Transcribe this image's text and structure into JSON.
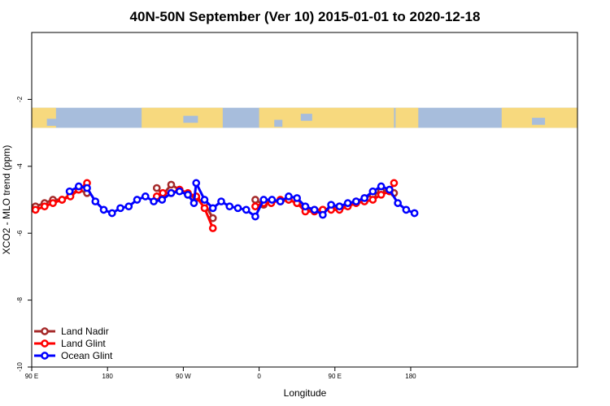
{
  "chart_data": {
    "type": "line",
    "title": "40N-50N September (Ver 10)   2015-01-01 to 2020-12-18",
    "xlabel": "Longitude",
    "ylabel": "XCO2 - MLO trend (ppm)",
    "xlim": [
      0,
      720
    ],
    "ylim": [
      -10,
      0
    ],
    "grid": false,
    "legend_position": "bottom-left",
    "x_ticks": [
      {
        "value": 0,
        "label": "90 E"
      },
      {
        "value": 100,
        "label": "180"
      },
      {
        "value": 200,
        "label": "90 W"
      },
      {
        "value": 300,
        "label": "0"
      },
      {
        "value": 400,
        "label": "90 E"
      },
      {
        "value": 500,
        "label": "180"
      }
    ],
    "y_ticks": [
      {
        "value": -2,
        "label": "-2"
      },
      {
        "value": -4,
        "label": "-4"
      },
      {
        "value": -6,
        "label": "-6"
      },
      {
        "value": -8,
        "label": "-8"
      },
      {
        "value": -10,
        "label": "-10"
      }
    ],
    "map_band": {
      "y_top": -2.25,
      "y_bottom": -2.85,
      "ocean_color": "#a7bddc",
      "land_color": "#f7d97e"
    },
    "series": [
      {
        "name": "Land Nadir",
        "color": "#a52a2a",
        "segments": [
          [
            [
              5,
              -5.2
            ],
            [
              17,
              -5.1
            ],
            [
              28,
              -5.0
            ],
            [
              40,
              -5.0
            ],
            [
              51,
              -4.85
            ],
            [
              62,
              -4.7
            ],
            [
              73,
              -4.8
            ]
          ],
          [
            [
              165,
              -4.65
            ],
            [
              173,
              -4.85
            ],
            [
              184,
              -4.55
            ],
            [
              195,
              -4.7
            ],
            [
              206,
              -4.85
            ],
            [
              217,
              -4.95
            ],
            [
              228,
              -5.1
            ],
            [
              239,
              -5.55
            ]
          ],
          [
            [
              295,
              -5.0
            ],
            [
              306,
              -5.15
            ],
            [
              316,
              -5.05
            ],
            [
              328,
              -5.05
            ],
            [
              339,
              -5.0
            ],
            [
              350,
              -5.1
            ],
            [
              361,
              -5.25
            ],
            [
              373,
              -5.3
            ],
            [
              384,
              -5.3
            ],
            [
              395,
              -5.25
            ],
            [
              406,
              -5.2
            ],
            [
              417,
              -5.15
            ],
            [
              428,
              -5.05
            ],
            [
              439,
              -4.95
            ],
            [
              450,
              -4.85
            ],
            [
              461,
              -4.75
            ],
            [
              472,
              -4.7
            ],
            [
              478,
              -4.8
            ]
          ]
        ]
      },
      {
        "name": "Land Glint",
        "color": "#ff0000",
        "segments": [
          [
            [
              5,
              -5.3
            ],
            [
              17,
              -5.2
            ],
            [
              28,
              -5.1
            ],
            [
              40,
              -5.0
            ],
            [
              51,
              -4.9
            ],
            [
              62,
              -4.7
            ],
            [
              73,
              -4.5
            ]
          ],
          [
            [
              165,
              -4.9
            ],
            [
              173,
              -4.8
            ],
            [
              184,
              -4.8
            ],
            [
              195,
              -4.7
            ],
            [
              206,
              -4.8
            ],
            [
              217,
              -4.9
            ],
            [
              228,
              -5.25
            ],
            [
              239,
              -5.85
            ]
          ],
          [
            [
              295,
              -5.2
            ],
            [
              306,
              -5.1
            ],
            [
              316,
              -5.1
            ],
            [
              328,
              -5.0
            ],
            [
              339,
              -5.0
            ],
            [
              350,
              -5.1
            ],
            [
              361,
              -5.35
            ],
            [
              373,
              -5.35
            ],
            [
              384,
              -5.3
            ],
            [
              395,
              -5.3
            ],
            [
              406,
              -5.3
            ],
            [
              417,
              -5.2
            ],
            [
              428,
              -5.1
            ],
            [
              439,
              -5.05
            ],
            [
              450,
              -5.0
            ],
            [
              461,
              -4.85
            ],
            [
              472,
              -4.75
            ],
            [
              478,
              -4.5
            ]
          ]
        ]
      },
      {
        "name": "Ocean Glint",
        "color": "#0000ff",
        "segments": [
          [
            [
              50,
              -4.75
            ],
            [
              62,
              -4.6
            ],
            [
              73,
              -4.65
            ],
            [
              84,
              -5.05
            ],
            [
              95,
              -5.3
            ],
            [
              106,
              -5.4
            ],
            [
              117,
              -5.25
            ],
            [
              128,
              -5.2
            ],
            [
              139,
              -5.0
            ],
            [
              150,
              -4.9
            ],
            [
              161,
              -5.05
            ],
            [
              172,
              -5.0
            ],
            [
              184,
              -4.8
            ],
            [
              195,
              -4.75
            ],
            [
              206,
              -4.85
            ],
            [
              214,
              -5.1
            ],
            [
              217,
              -4.5
            ],
            [
              228,
              -5.0
            ],
            [
              239,
              -5.25
            ],
            [
              250,
              -5.05
            ],
            [
              261,
              -5.2
            ],
            [
              272,
              -5.25
            ],
            [
              283,
              -5.3
            ],
            [
              295,
              -5.5
            ],
            [
              306,
              -5.0
            ],
            [
              317,
              -5.0
            ],
            [
              328,
              -5.05
            ],
            [
              339,
              -4.9
            ],
            [
              350,
              -4.95
            ],
            [
              361,
              -5.2
            ],
            [
              373,
              -5.3
            ],
            [
              384,
              -5.45
            ],
            [
              395,
              -5.15
            ],
            [
              406,
              -5.2
            ],
            [
              417,
              -5.1
            ],
            [
              428,
              -5.05
            ],
            [
              439,
              -4.95
            ],
            [
              450,
              -4.75
            ],
            [
              461,
              -4.6
            ],
            [
              472,
              -4.7
            ],
            [
              483,
              -5.1
            ],
            [
              494,
              -5.3
            ],
            [
              505,
              -5.4
            ]
          ]
        ]
      }
    ]
  }
}
